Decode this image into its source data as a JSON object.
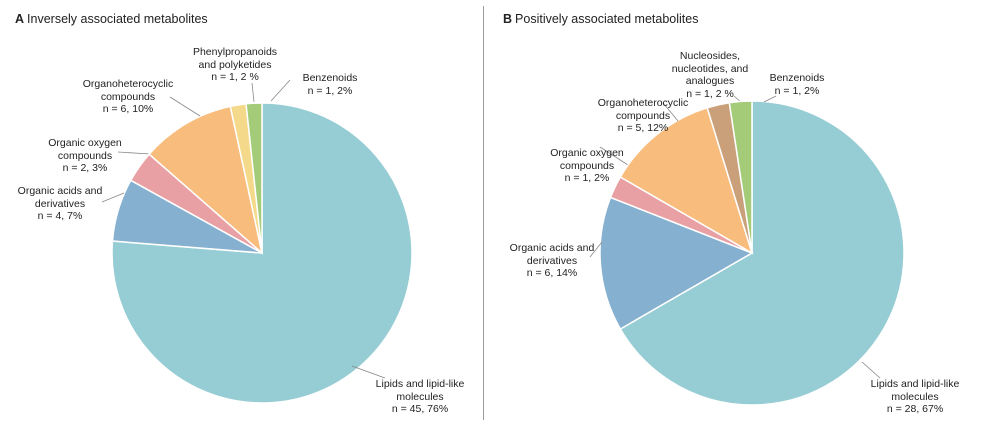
{
  "chart_data": [
    {
      "type": "pie",
      "panel": "A",
      "title": "Inversely associated metabolites",
      "slices": [
        {
          "name": "Lipids and lipid-like molecules",
          "n": 45,
          "pct": 76,
          "color": "#96ccd4",
          "label": [
            "Lipids and lipid-like",
            "molecules",
            "n = 45, 76%"
          ]
        },
        {
          "name": "Organic acids and derivatives",
          "n": 4,
          "pct": 7,
          "color": "#86b0cf",
          "label": [
            "Organic acids and",
            "derivatives",
            "n = 4, 7%"
          ]
        },
        {
          "name": "Organic oxygen compounds",
          "n": 2,
          "pct": 3,
          "color": "#e8a0a4",
          "label": [
            "Organic oxygen",
            "compounds",
            "n = 2, 3%"
          ]
        },
        {
          "name": "Organoheterocyclic compounds",
          "n": 6,
          "pct": 10,
          "color": "#f8bc7c",
          "label": [
            "Organoheterocyclic",
            "compounds",
            "n = 6, 10%"
          ]
        },
        {
          "name": "Phenylpropanoids and polyketides",
          "n": 1,
          "pct": 2,
          "color": "#f5d98a",
          "label": [
            "Phenylpropanoids",
            "and polyketides",
            "n = 1, 2 %"
          ]
        },
        {
          "name": "Benzenoids",
          "n": 1,
          "pct": 2,
          "color": "#a3cb78",
          "label": [
            "Benzenoids",
            "n = 1, 2%"
          ]
        }
      ]
    },
    {
      "type": "pie",
      "panel": "B",
      "title": "Positively associated metabolites",
      "slices": [
        {
          "name": "Lipids and lipid-like molecules",
          "n": 28,
          "pct": 67,
          "color": "#96ccd4",
          "label": [
            "Lipids and lipid-like",
            "molecules",
            "n = 28, 67%"
          ]
        },
        {
          "name": "Organic acids and derivatives",
          "n": 6,
          "pct": 14,
          "color": "#86b0cf",
          "label": [
            "Organic acids and",
            "derivatives",
            "n = 6, 14%"
          ]
        },
        {
          "name": "Organic oxygen compounds",
          "n": 1,
          "pct": 2,
          "color": "#e8a0a4",
          "label": [
            "Organic oxygen",
            "compounds",
            "n = 1, 2%"
          ]
        },
        {
          "name": "Organoheterocyclic compounds",
          "n": 5,
          "pct": 12,
          "color": "#f8bc7c",
          "label": [
            "Organoheterocyclic",
            "compounds",
            "n = 5, 12%"
          ]
        },
        {
          "name": "Nucleosides, nucleotides, and analogues",
          "n": 1,
          "pct": 2,
          "color": "#c9a07a",
          "label": [
            "Nucleosides,",
            "nucleotides, and",
            "analogues",
            "n = 1, 2 %"
          ]
        },
        {
          "name": "Benzenoids",
          "n": 1,
          "pct": 2,
          "color": "#a3cb78",
          "label": [
            "Benzenoids",
            "n = 1, 2%"
          ]
        }
      ]
    }
  ]
}
